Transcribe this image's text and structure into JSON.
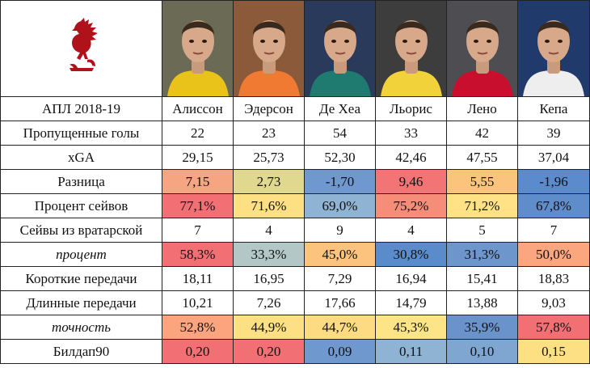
{
  "players": [
    {
      "name": "Алиссон",
      "kit": "#e9c21a",
      "bg": "#6b6b55"
    },
    {
      "name": "Эдерсон",
      "kit": "#f07a32",
      "bg": "#8a5a3b"
    },
    {
      "name": "Де Хеа",
      "kit": "#1f7a70",
      "bg": "#2a3a5a"
    },
    {
      "name": "Льорис",
      "kit": "#f2d23a",
      "bg": "#3d3d3d"
    },
    {
      "name": "Лено",
      "kit": "#c8102e",
      "bg": "#4e4e52"
    },
    {
      "name": "Кепа",
      "kit": "#eeeeee",
      "bg": "#1f3a6b"
    }
  ],
  "header_label": "АПЛ 2018-19",
  "rows": [
    {
      "label": "Пропущенные голы",
      "italic": false,
      "values": [
        "22",
        "23",
        "54",
        "33",
        "42",
        "39"
      ],
      "colors": [
        "#ffffff",
        "#ffffff",
        "#ffffff",
        "#ffffff",
        "#ffffff",
        "#ffffff"
      ]
    },
    {
      "label": "xGA",
      "italic": false,
      "values": [
        "29,15",
        "25,73",
        "52,30",
        "42,46",
        "47,55",
        "37,04"
      ],
      "colors": [
        "#ffffff",
        "#ffffff",
        "#ffffff",
        "#ffffff",
        "#ffffff",
        "#ffffff"
      ]
    },
    {
      "label": "Разница",
      "italic": false,
      "values": [
        "7,15",
        "2,73",
        "-1,70",
        "9,46",
        "5,55",
        "-1,96"
      ],
      "colors": [
        "#f5a582",
        "#dfd88e",
        "#6f98cf",
        "#f27475",
        "#fbc47d",
        "#5b8bcc"
      ]
    },
    {
      "label": "Процент сейвов",
      "italic": false,
      "values": [
        "77,1%",
        "71,6%",
        "69,0%",
        "75,2%",
        "71,2%",
        "67,8%"
      ],
      "colors": [
        "#f26f73",
        "#fde083",
        "#8fb3d2",
        "#f68d78",
        "#fee285",
        "#5f8ccb"
      ]
    },
    {
      "label": "Сейвы из вратарской",
      "italic": false,
      "values": [
        "7",
        "4",
        "9",
        "4",
        "5",
        "7"
      ],
      "colors": [
        "#ffffff",
        "#ffffff",
        "#ffffff",
        "#ffffff",
        "#ffffff",
        "#ffffff"
      ]
    },
    {
      "label": "процент",
      "italic": true,
      "values": [
        "58,3%",
        "33,3%",
        "45,0%",
        "30,8%",
        "31,3%",
        "50,0%"
      ],
      "colors": [
        "#f26f73",
        "#b3c8c6",
        "#fbc37d",
        "#5a8ccb",
        "#6c96cc",
        "#fba67e"
      ]
    },
    {
      "label": "Короткие передачи",
      "italic": false,
      "values": [
        "18,11",
        "16,95",
        "7,29",
        "16,94",
        "15,41",
        "18,83"
      ],
      "colors": [
        "#ffffff",
        "#ffffff",
        "#ffffff",
        "#ffffff",
        "#ffffff",
        "#ffffff"
      ]
    },
    {
      "label": "Длинные передачи",
      "italic": false,
      "values": [
        "10,21",
        "7,26",
        "17,66",
        "14,79",
        "13,88",
        "9,03"
      ],
      "colors": [
        "#ffffff",
        "#ffffff",
        "#ffffff",
        "#ffffff",
        "#ffffff",
        "#ffffff"
      ]
    },
    {
      "label": "точность",
      "italic": true,
      "values": [
        "52,8%",
        "44,9%",
        "44,7%",
        "45,3%",
        "35,9%",
        "57,8%"
      ],
      "colors": [
        "#fba47d",
        "#fde083",
        "#fddb82",
        "#fde486",
        "#6a93cb",
        "#f26f73"
      ]
    },
    {
      "label": "Билдап90",
      "italic": false,
      "values": [
        "0,20",
        "0,20",
        "0,09",
        "0,11",
        "0,10",
        "0,15"
      ],
      "colors": [
        "#f26f73",
        "#f26f73",
        "#6f98cf",
        "#8fb3d2",
        "#7ea6d0",
        "#fde083"
      ]
    }
  ]
}
